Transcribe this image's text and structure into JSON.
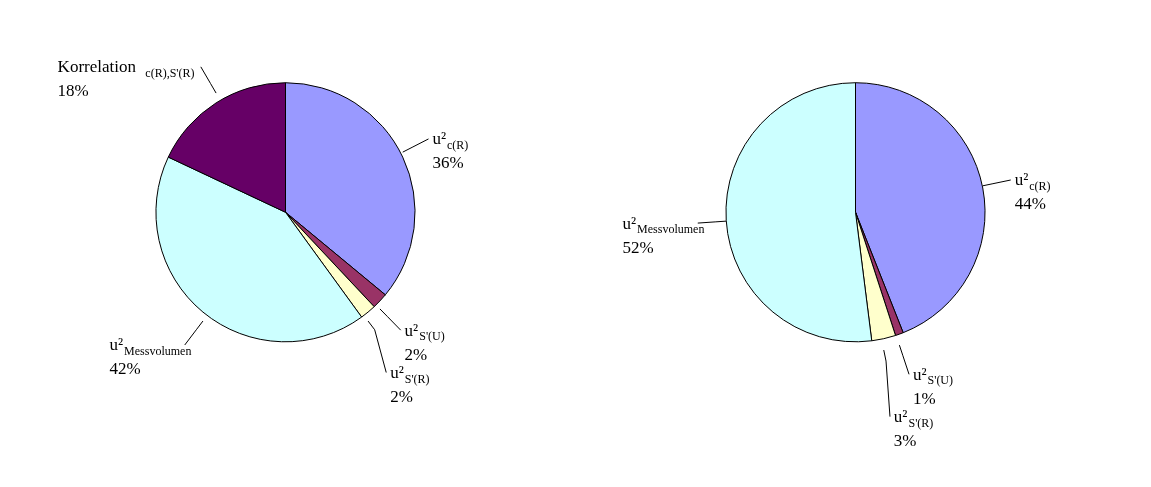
{
  "chart_data": [
    {
      "type": "pie",
      "categories": [
        "u²$_{c(R)}$",
        "u²$_{S'(U)}$",
        "u²$_{S'(R)}$",
        "u²$_{Messvolumen}$",
        "Korrelation $_{c(R),S'(R)}$"
      ],
      "values": [
        36,
        2,
        2,
        42,
        18
      ],
      "value_labels": [
        "36%",
        "2%",
        "2%",
        "42%",
        "18%"
      ],
      "colors": [
        "#9999ff",
        "#993366",
        "#ffffcc",
        "#ccffff",
        "#660066"
      ]
    },
    {
      "type": "pie",
      "categories": [
        "u²$_{c(R)}$",
        "u²$_{S'(U)}$",
        "u²$_{S'(R)}$",
        "u²$_{Messvolumen}$"
      ],
      "values": [
        44,
        1,
        3,
        52
      ],
      "value_labels": [
        "44%",
        "1%",
        "3%",
        "52%"
      ],
      "colors": [
        "#9999ff",
        "#993366",
        "#ffffcc",
        "#ccffff"
      ]
    }
  ]
}
